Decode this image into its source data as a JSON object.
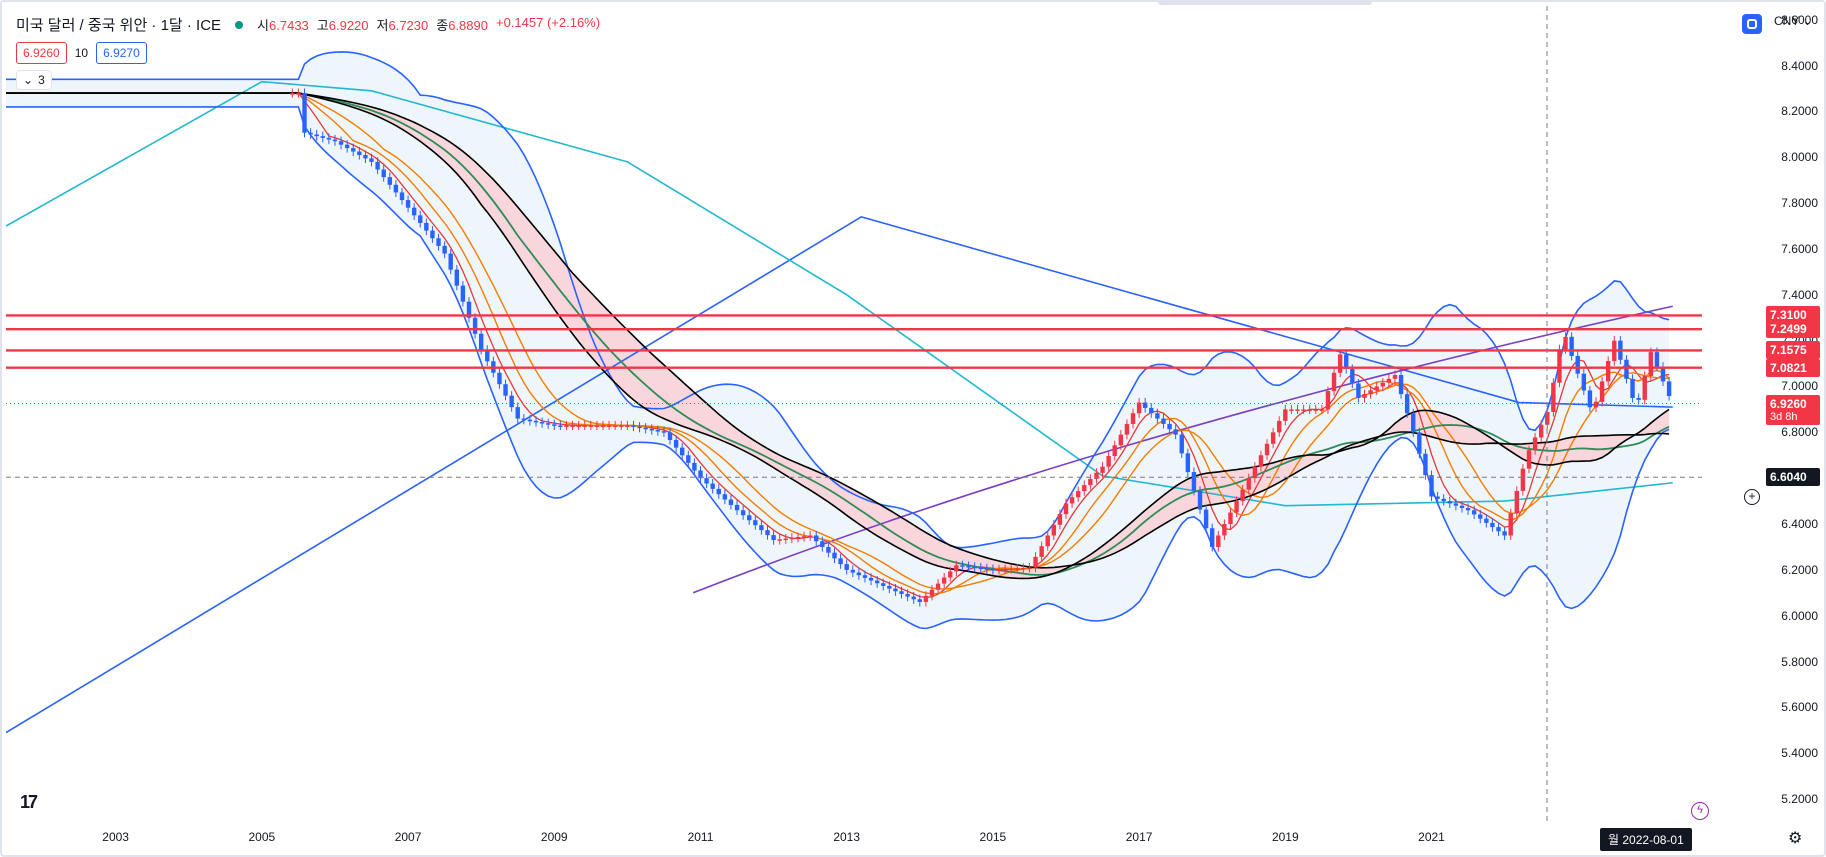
{
  "header": {
    "symbol": "미국 달러 / 중국 위안 · 1달 · ICE",
    "ohlc": [
      {
        "label": "시",
        "value": "6.7433"
      },
      {
        "label": "고",
        "value": "6.9220"
      },
      {
        "label": "저",
        "value": "6.7230"
      },
      {
        "label": "종",
        "value": "6.8890"
      },
      {
        "label": "",
        "value": "+0.1457 (+2.16%)"
      }
    ],
    "bid": "6.9260",
    "spread": "10",
    "ask": "6.9270",
    "collapse_label": "3",
    "currency": "CNY"
  },
  "colors": {
    "up": "#f23645",
    "down": "#2962ff",
    "bb_fill": "#eef5fb",
    "ribbon_fill": "#f9d6dc",
    "resistance": "#f23645",
    "teal_line": "#22b8cf",
    "purple_line": "#7b3fc4",
    "blue_line": "#2962ff",
    "orange_line": "#f57c00",
    "green_line": "#2e8b57",
    "black_line": "#000000"
  },
  "axis": {
    "y_ticks": [
      "8.6000",
      "8.4000",
      "8.2000",
      "8.0000",
      "7.8000",
      "7.6000",
      "7.4000",
      "7.2000",
      "7.0000",
      "6.8000",
      "6.6000",
      "6.4000",
      "6.2000",
      "6.0000",
      "5.8000",
      "5.6000",
      "5.4000",
      "5.2000"
    ],
    "x_ticks": [
      "2003",
      "2005",
      "2007",
      "2009",
      "2011",
      "2013",
      "2015",
      "2017",
      "2019",
      "2021"
    ]
  },
  "price_tags": [
    {
      "value": "7.3100",
      "sub": "",
      "kind": "red"
    },
    {
      "value": "7.2499",
      "sub": "",
      "kind": "red"
    },
    {
      "value": "7.1575",
      "sub": "",
      "kind": "red"
    },
    {
      "value": "7.0821",
      "sub": "",
      "kind": "red"
    },
    {
      "value": "6.9260",
      "sub": "3d 8h",
      "kind": "red"
    },
    {
      "value": "6.6040",
      "sub": "",
      "kind": "dark"
    }
  ],
  "crosshair_date": "월 2022-08-01",
  "chart_data": {
    "type": "candlestick",
    "y_range": [
      5.1,
      8.66
    ],
    "x_range": [
      2001.5,
      2024.7
    ],
    "resistance_levels": [
      7.31,
      7.2499,
      7.1575,
      7.0821
    ],
    "last_price": 6.926,
    "crosshair_price": 6.604,
    "crosshair_time": 2022.58,
    "price_path": [
      [
        2001.5,
        8.28
      ],
      [
        2005.5,
        8.28
      ],
      [
        2005.55,
        8.11
      ],
      [
        2006.0,
        8.07
      ],
      [
        2006.5,
        7.98
      ],
      [
        2007.0,
        7.78
      ],
      [
        2007.5,
        7.58
      ],
      [
        2008.0,
        7.16
      ],
      [
        2008.5,
        6.86
      ],
      [
        2009.0,
        6.83
      ],
      [
        2009.5,
        6.83
      ],
      [
        2010.0,
        6.83
      ],
      [
        2010.5,
        6.8
      ],
      [
        2011.0,
        6.6
      ],
      [
        2011.5,
        6.46
      ],
      [
        2012.0,
        6.33
      ],
      [
        2012.5,
        6.35
      ],
      [
        2013.0,
        6.2
      ],
      [
        2013.5,
        6.13
      ],
      [
        2014.0,
        6.06
      ],
      [
        2014.5,
        6.22
      ],
      [
        2015.0,
        6.2
      ],
      [
        2015.5,
        6.21
      ],
      [
        2016.0,
        6.49
      ],
      [
        2016.5,
        6.65
      ],
      [
        2017.0,
        6.93
      ],
      [
        2017.5,
        6.79
      ],
      [
        2018.0,
        6.3
      ],
      [
        2018.5,
        6.6
      ],
      [
        2019.0,
        6.9
      ],
      [
        2019.5,
        6.9
      ],
      [
        2019.75,
        7.14
      ],
      [
        2020.0,
        6.95
      ],
      [
        2020.5,
        7.05
      ],
      [
        2020.75,
        6.8
      ],
      [
        2021.0,
        6.52
      ],
      [
        2021.5,
        6.46
      ],
      [
        2022.0,
        6.35
      ],
      [
        2022.3,
        6.7
      ],
      [
        2022.6,
        6.9
      ],
      [
        2022.8,
        7.25
      ],
      [
        2022.95,
        7.1
      ],
      [
        2023.2,
        6.88
      ],
      [
        2023.5,
        7.2
      ],
      [
        2023.8,
        6.9
      ],
      [
        2024.0,
        7.15
      ],
      [
        2024.3,
        6.92
      ]
    ]
  }
}
